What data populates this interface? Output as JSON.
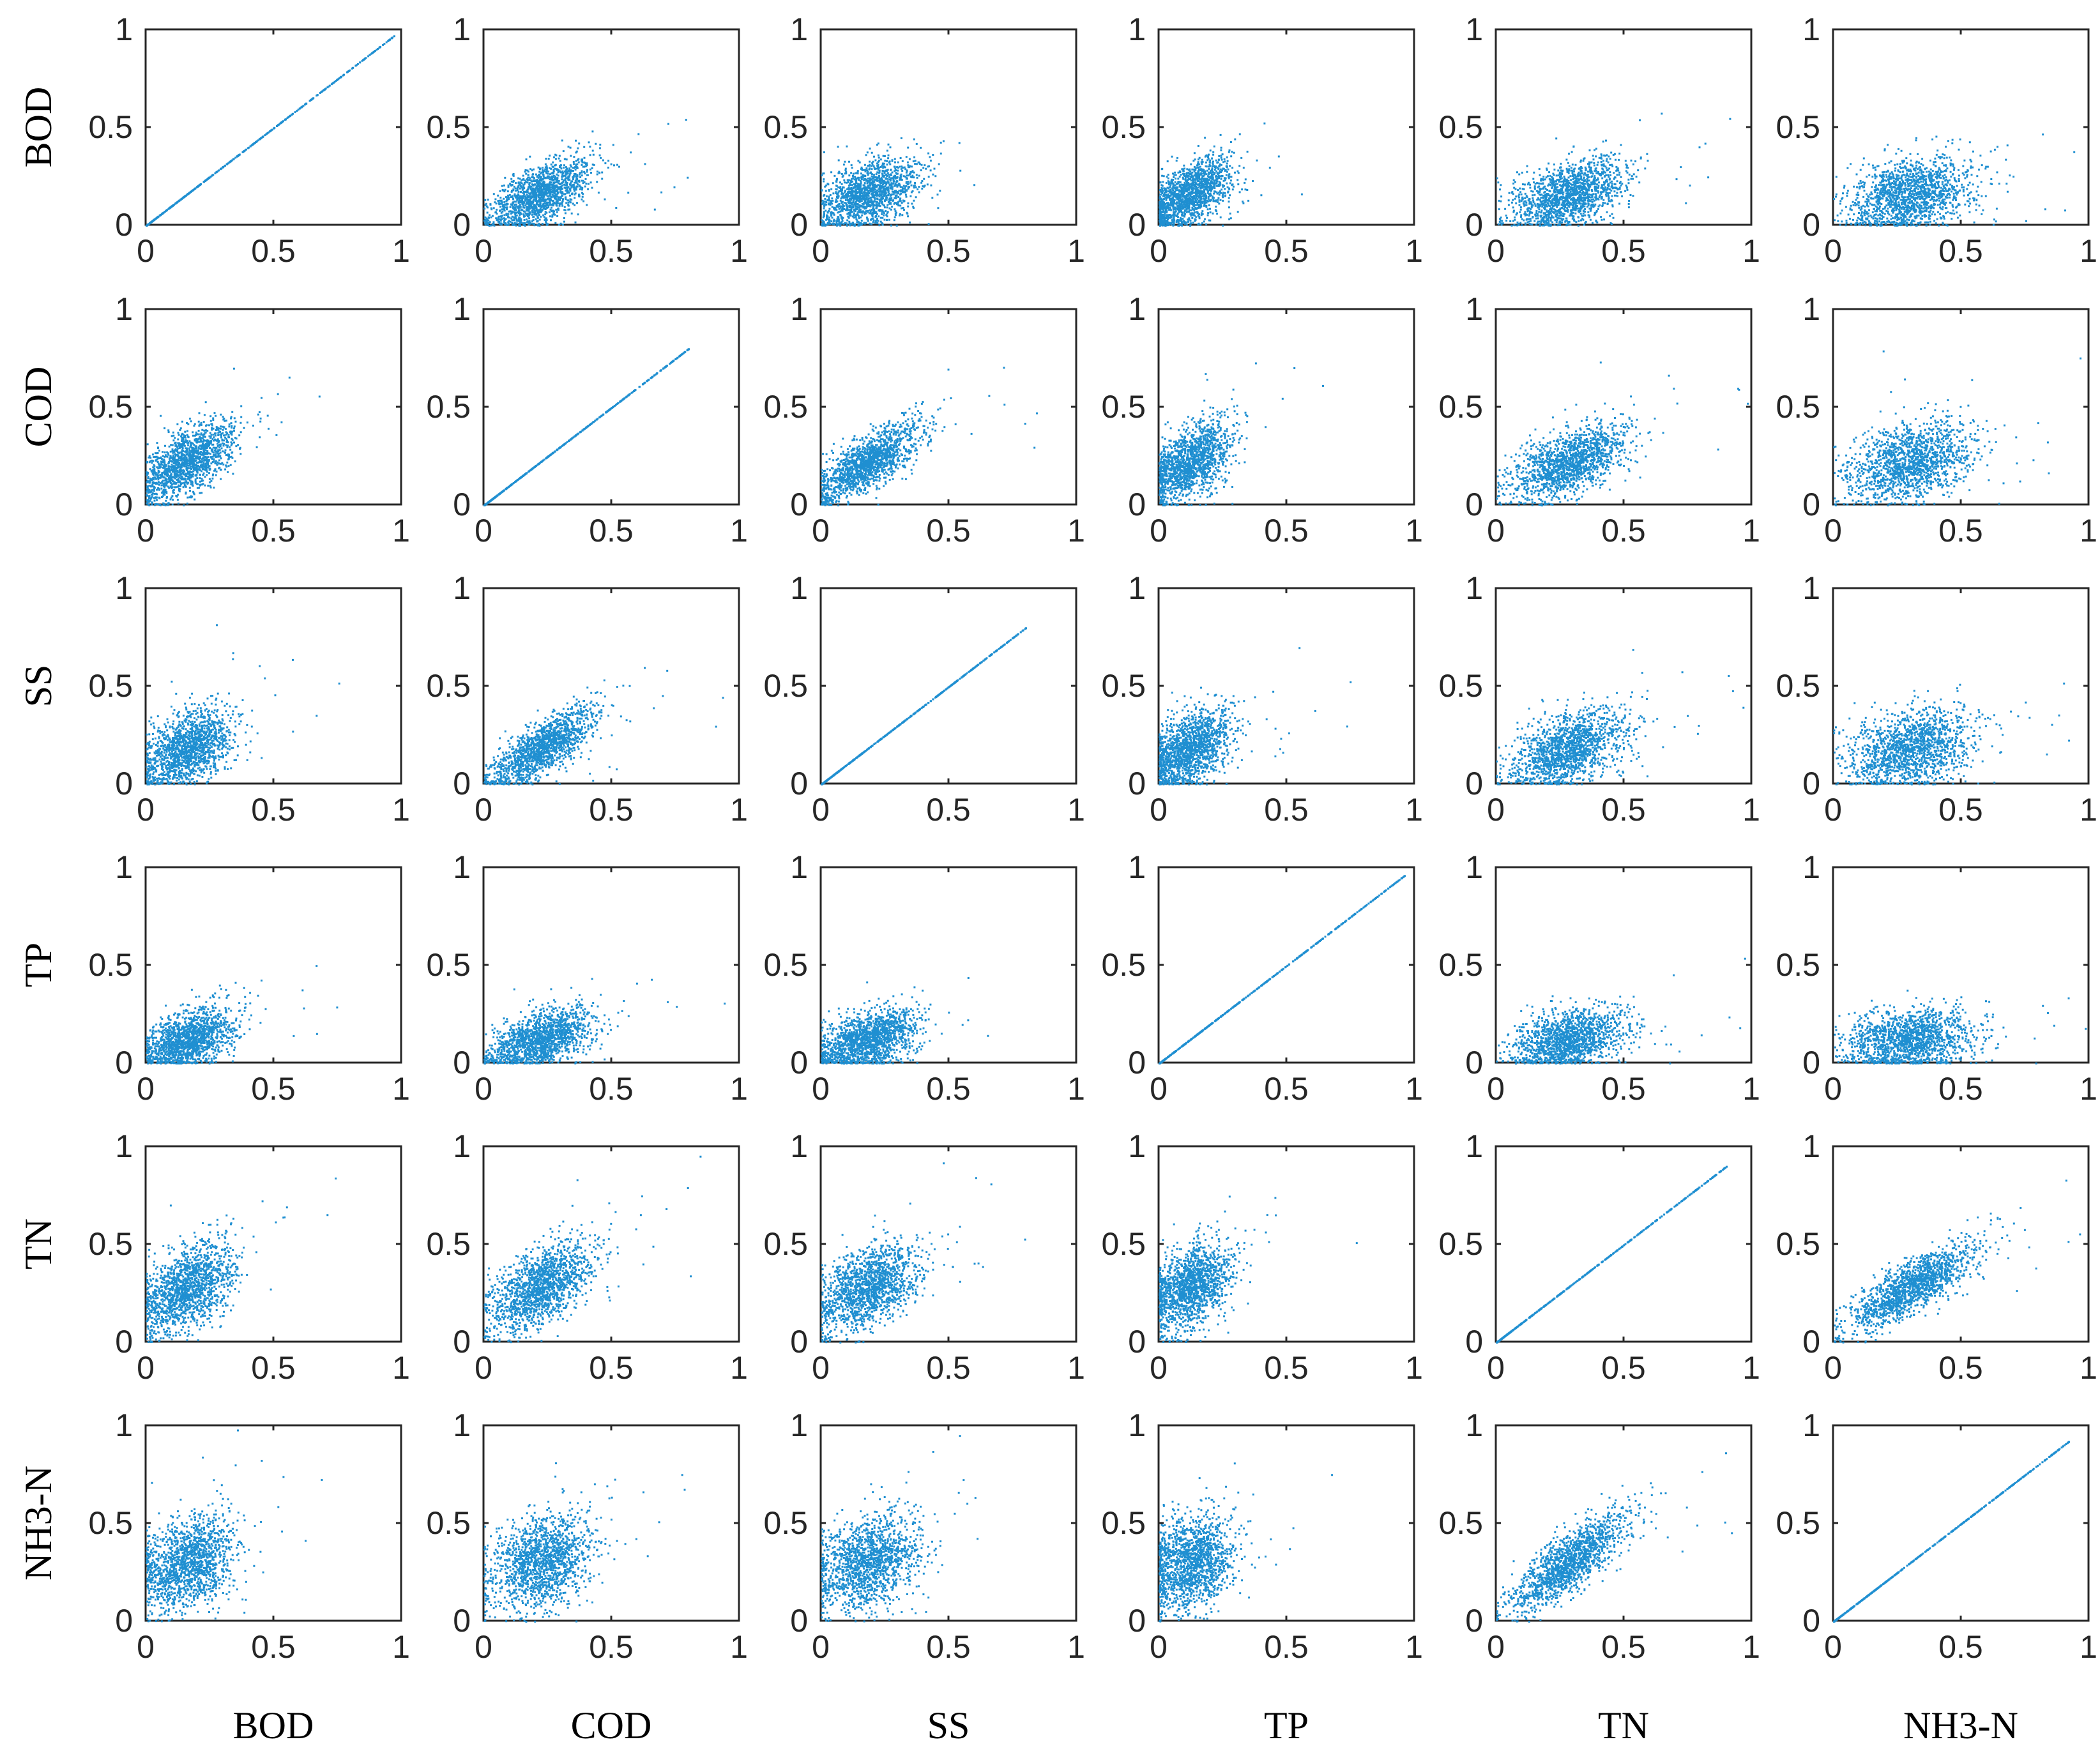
{
  "chart_data": {
    "type": "scatter",
    "description_of_layout": "6x6 scatter-plot matrix of normalized water-quality variables",
    "variables": [
      "BOD",
      "COD",
      "SS",
      "TP",
      "TN",
      "NH3-N"
    ],
    "row_labels": [
      "BOD",
      "COD",
      "SS",
      "TP",
      "TN",
      "NH3-N"
    ],
    "column_labels": [
      "BOD",
      "COD",
      "SS",
      "TP",
      "TN",
      "NH3-N"
    ],
    "x_ticks": [
      "0",
      "0.5",
      "1"
    ],
    "y_ticks": [
      "0",
      "0.5",
      "1"
    ],
    "xlim": [
      0,
      1
    ],
    "ylim": [
      0,
      1
    ],
    "grid": false,
    "marker_color": "#1f8fd1",
    "diagonal_max": [
      0.97,
      0.8,
      0.8,
      0.96,
      0.9,
      0.92
    ],
    "variable_means": [
      0.16,
      0.22,
      0.18,
      0.12,
      0.28,
      0.3
    ],
    "variable_spreads": [
      0.09,
      0.1,
      0.1,
      0.08,
      0.11,
      0.12
    ],
    "correlation_estimates": [
      [
        1.0,
        0.6,
        0.45,
        0.5,
        0.45,
        0.3
      ],
      [
        0.6,
        1.0,
        0.75,
        0.5,
        0.55,
        0.3
      ],
      [
        0.45,
        0.75,
        1.0,
        0.45,
        0.45,
        0.25
      ],
      [
        0.5,
        0.5,
        0.45,
        1.0,
        0.35,
        0.2
      ],
      [
        0.45,
        0.55,
        0.45,
        0.35,
        1.0,
        0.8
      ],
      [
        0.3,
        0.3,
        0.25,
        0.2,
        0.8,
        1.0
      ]
    ]
  }
}
